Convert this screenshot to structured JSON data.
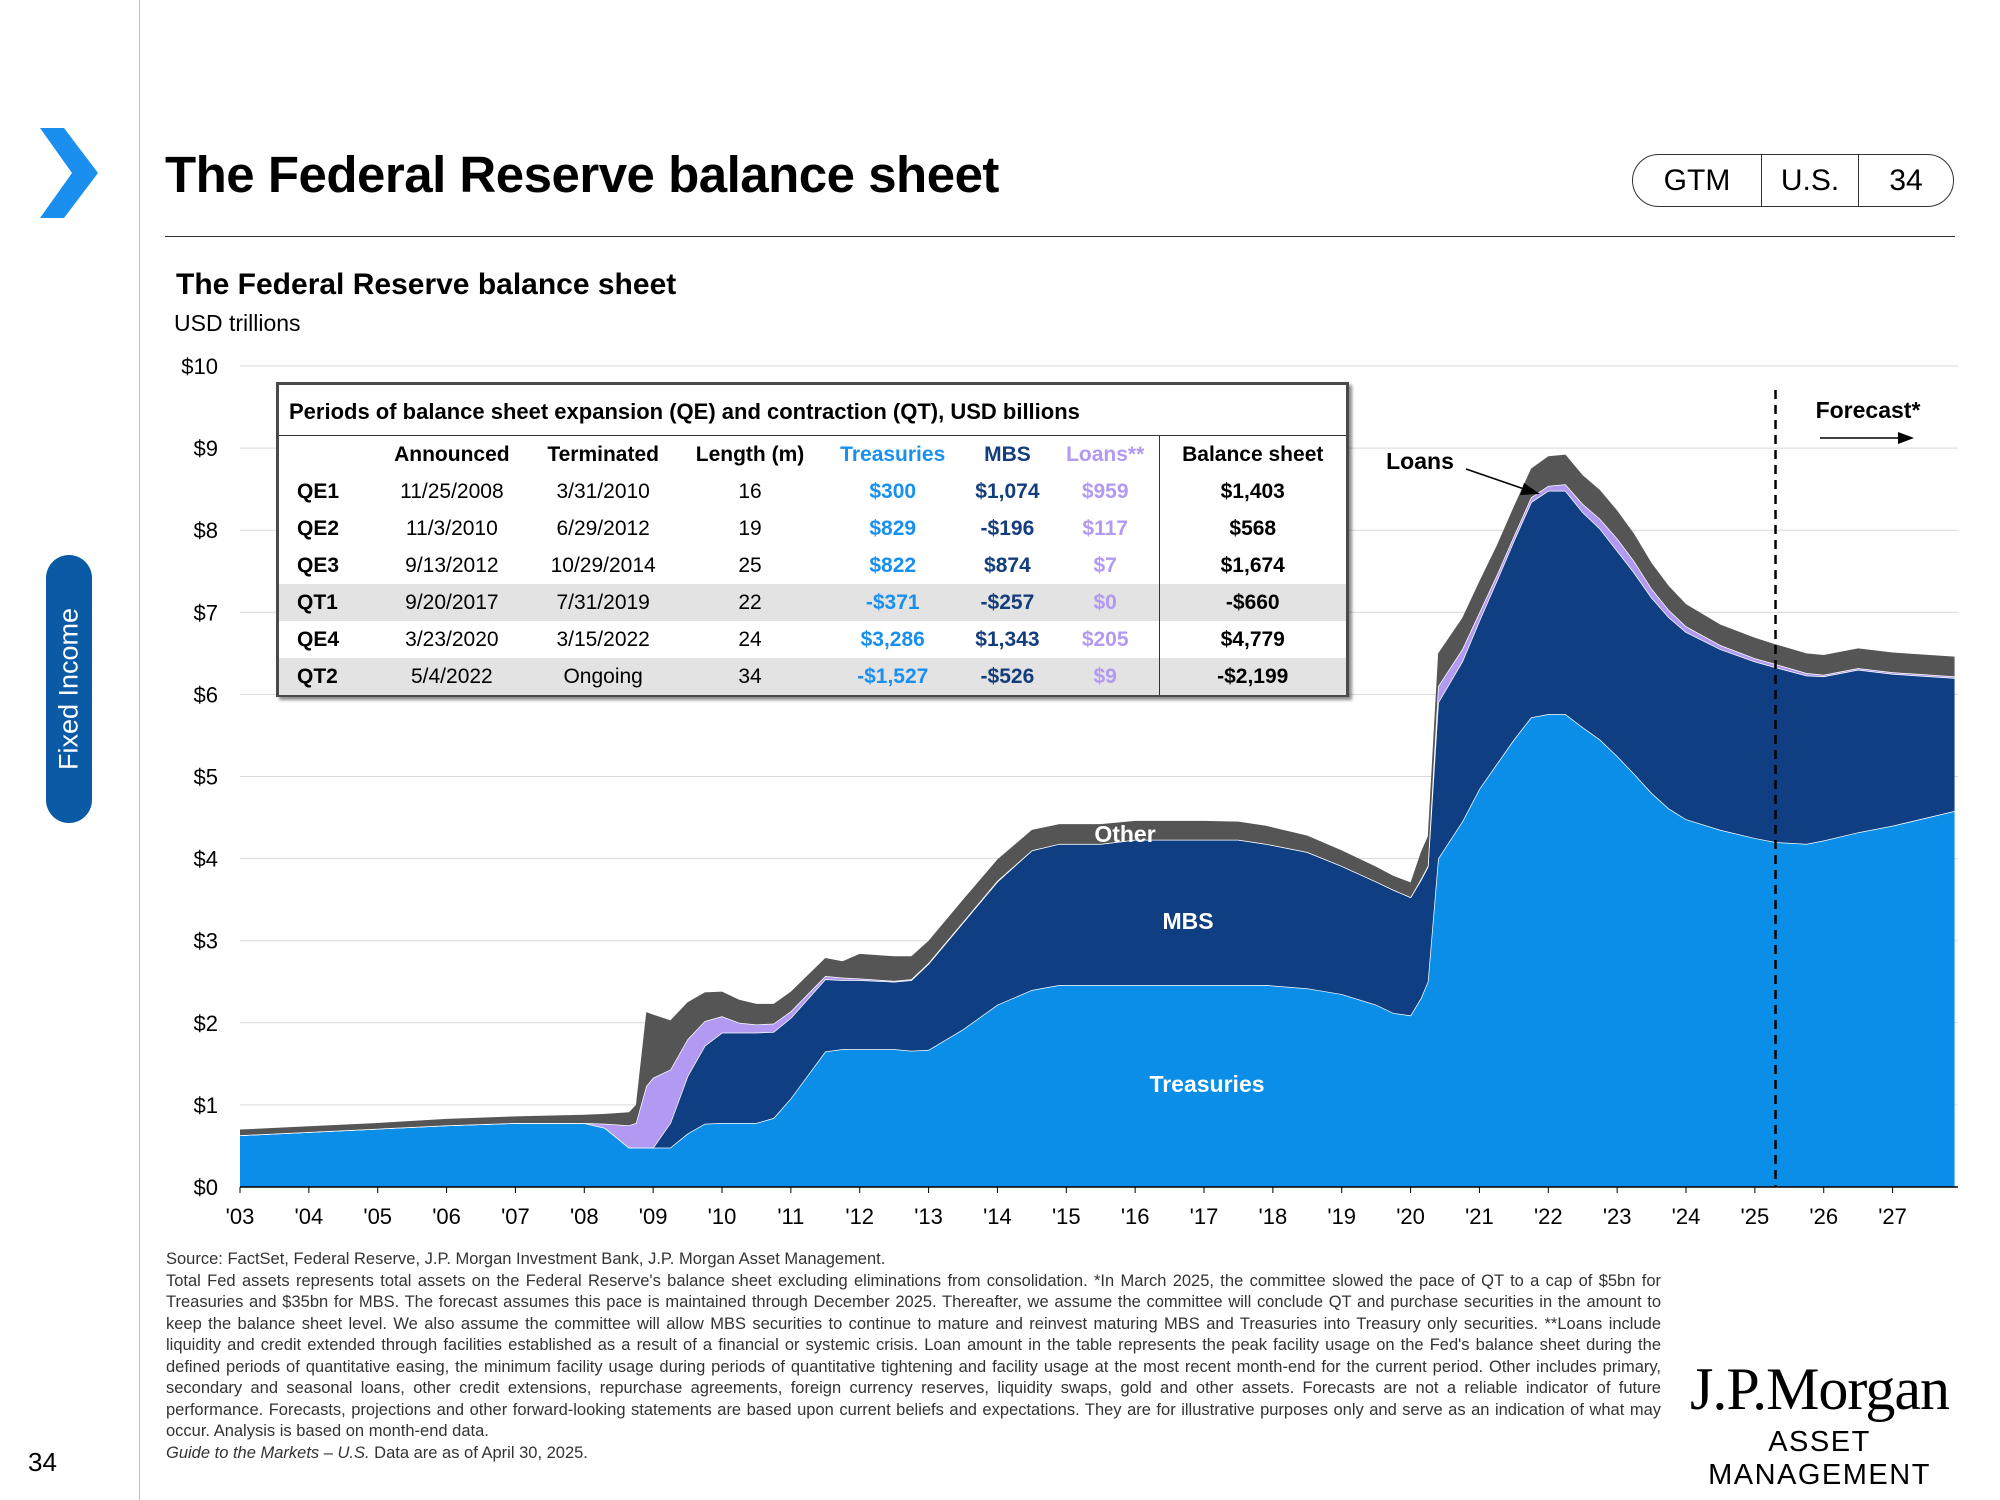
{
  "header": {
    "title": "The Federal Reserve balance sheet",
    "pill": [
      "GTM",
      "U.S.",
      "34"
    ]
  },
  "section_tab": "Fixed Income",
  "chart_data": {
    "type": "area",
    "title": "The Federal Reserve balance sheet",
    "subtitle": "USD trillions",
    "ylim": [
      0,
      10
    ],
    "y_ticks": [
      "$0",
      "$1",
      "$2",
      "$3",
      "$4",
      "$5",
      "$6",
      "$7",
      "$8",
      "$9",
      "$10"
    ],
    "x_ticks": [
      "'03",
      "'04",
      "'05",
      "'06",
      "'07",
      "'08",
      "'09",
      "'10",
      "'11",
      "'12",
      "'13",
      "'14",
      "'15",
      "'16",
      "'17",
      "'18",
      "'19",
      "'20",
      "'21",
      "'22",
      "'23",
      "'24",
      "'25",
      "'26",
      "'27"
    ],
    "x": [
      2003.0,
      2004.0,
      2005.0,
      2006.0,
      2007.0,
      2008.0,
      2008.3,
      2008.65,
      2008.75,
      2008.9,
      2009.0,
      2009.25,
      2009.5,
      2009.75,
      2010.0,
      2010.25,
      2010.5,
      2010.75,
      2011.0,
      2011.5,
      2011.75,
      2012.0,
      2012.5,
      2012.75,
      2013.0,
      2013.5,
      2014.0,
      2014.5,
      2014.9,
      2015.5,
      2016.0,
      2016.5,
      2017.0,
      2017.5,
      2017.9,
      2018.5,
      2019.0,
      2019.5,
      2019.75,
      2020.0,
      2020.15,
      2020.25,
      2020.4,
      2020.75,
      2021.0,
      2021.25,
      2021.5,
      2021.75,
      2022.0,
      2022.25,
      2022.5,
      2022.75,
      2023.0,
      2023.25,
      2023.5,
      2023.75,
      2024.0,
      2024.5,
      2025.0,
      2025.3,
      2025.75,
      2026.0,
      2026.5,
      2027.0,
      2027.9
    ],
    "series": [
      {
        "name": "Treasuries",
        "color": "#0a8ee8",
        "values": [
          0.63,
          0.67,
          0.71,
          0.75,
          0.78,
          0.78,
          0.72,
          0.48,
          0.48,
          0.48,
          0.48,
          0.48,
          0.65,
          0.77,
          0.78,
          0.78,
          0.78,
          0.84,
          1.08,
          1.65,
          1.68,
          1.68,
          1.68,
          1.66,
          1.67,
          1.92,
          2.22,
          2.4,
          2.46,
          2.46,
          2.46,
          2.46,
          2.46,
          2.46,
          2.46,
          2.42,
          2.35,
          2.22,
          2.12,
          2.09,
          2.3,
          2.5,
          4.0,
          4.45,
          4.85,
          5.15,
          5.45,
          5.72,
          5.76,
          5.76,
          5.6,
          5.45,
          5.25,
          5.03,
          4.8,
          4.61,
          4.48,
          4.35,
          4.25,
          4.2,
          4.18,
          4.22,
          4.32,
          4.4,
          4.58
        ]
      },
      {
        "name": "MBS",
        "color": "#0f3e83",
        "values": [
          0,
          0,
          0,
          0,
          0,
          0,
          0,
          0,
          0,
          0,
          0,
          0.3,
          0.7,
          0.95,
          1.1,
          1.1,
          1.1,
          1.05,
          0.98,
          0.88,
          0.84,
          0.84,
          0.82,
          0.86,
          1.05,
          1.3,
          1.5,
          1.7,
          1.72,
          1.72,
          1.77,
          1.77,
          1.77,
          1.77,
          1.72,
          1.66,
          1.56,
          1.5,
          1.5,
          1.44,
          1.44,
          1.4,
          1.9,
          1.95,
          2.05,
          2.23,
          2.42,
          2.62,
          2.72,
          2.72,
          2.62,
          2.57,
          2.5,
          2.45,
          2.38,
          2.33,
          2.28,
          2.2,
          2.15,
          2.13,
          2.05,
          2.0,
          1.98,
          1.85,
          1.62
        ]
      },
      {
        "name": "Loans",
        "color": "#b299f2",
        "values": [
          0,
          0,
          0,
          0,
          0,
          0,
          0.05,
          0.27,
          0.3,
          0.75,
          0.85,
          0.65,
          0.45,
          0.3,
          0.2,
          0.12,
          0.1,
          0.1,
          0.08,
          0.04,
          0.03,
          0.02,
          0.01,
          0.01,
          0.01,
          0.01,
          0.01,
          0,
          0,
          0,
          0,
          0,
          0,
          0,
          0,
          0,
          0,
          0,
          0,
          0,
          0.01,
          0.01,
          0.2,
          0.15,
          0.1,
          0.07,
          0.06,
          0.06,
          0.06,
          0.08,
          0.1,
          0.12,
          0.15,
          0.14,
          0.11,
          0.09,
          0.07,
          0.05,
          0.04,
          0.04,
          0.03,
          0.02,
          0.02,
          0.02,
          0.02
        ]
      },
      {
        "name": "Other",
        "color": "#555555",
        "values": [
          0.07,
          0.07,
          0.07,
          0.08,
          0.08,
          0.1,
          0.12,
          0.16,
          0.22,
          0.9,
          0.77,
          0.6,
          0.45,
          0.35,
          0.3,
          0.28,
          0.25,
          0.24,
          0.24,
          0.22,
          0.2,
          0.3,
          0.3,
          0.28,
          0.27,
          0.27,
          0.26,
          0.25,
          0.24,
          0.24,
          0.23,
          0.23,
          0.23,
          0.22,
          0.22,
          0.2,
          0.19,
          0.18,
          0.17,
          0.18,
          0.33,
          0.36,
          0.4,
          0.38,
          0.38,
          0.36,
          0.36,
          0.35,
          0.36,
          0.36,
          0.35,
          0.35,
          0.34,
          0.33,
          0.31,
          0.29,
          0.27,
          0.25,
          0.25,
          0.24,
          0.24,
          0.24,
          0.24,
          0.24,
          0.24
        ]
      }
    ],
    "area_labels": {
      "other": "Other",
      "mbs": "MBS",
      "treasuries": "Treasuries",
      "loans": "Loans"
    },
    "forecast": {
      "label": "Forecast*",
      "start_x": 2025.3
    }
  },
  "table": {
    "caption": "Periods of balance sheet expansion (QE) and contraction (QT), USD billions",
    "columns": [
      "",
      "Announced",
      "Terminated",
      "Length (m)",
      "Treasuries",
      "MBS",
      "Loans**",
      "Balance sheet"
    ],
    "rows": [
      {
        "label": "QE1",
        "announced": "11/25/2008",
        "terminated": "3/31/2010",
        "length": "16",
        "treasuries": "$300",
        "mbs": "$1,074",
        "loans": "$959",
        "balance": "$1,403"
      },
      {
        "label": "QE2",
        "announced": "11/3/2010",
        "terminated": "6/29/2012",
        "length": "19",
        "treasuries": "$829",
        "mbs": "-$196",
        "loans": "$117",
        "balance": "$568"
      },
      {
        "label": "QE3",
        "announced": "9/13/2012",
        "terminated": "10/29/2014",
        "length": "25",
        "treasuries": "$822",
        "mbs": "$874",
        "loans": "$7",
        "balance": "$1,674"
      },
      {
        "label": "QT1",
        "announced": "9/20/2017",
        "terminated": "7/31/2019",
        "length": "22",
        "treasuries": "-$371",
        "mbs": "-$257",
        "loans": "$0",
        "balance": "-$660"
      },
      {
        "label": "QE4",
        "announced": "3/23/2020",
        "terminated": "3/15/2022",
        "length": "24",
        "treasuries": "$3,286",
        "mbs": "$1,343",
        "loans": "$205",
        "balance": "$4,779"
      },
      {
        "label": "QT2",
        "announced": "5/4/2022",
        "terminated": "Ongoing",
        "length": "34",
        "treasuries": "-$1,527",
        "mbs": "-$526",
        "loans": "$9",
        "balance": "-$2,199"
      }
    ]
  },
  "footnotes": {
    "source": "Source: FactSet, Federal Reserve, J.P. Morgan Investment Bank, J.P. Morgan Asset Management.",
    "body": "Total Fed assets represents total assets on the Federal Reserve's balance sheet excluding eliminations from consolidation. *In March 2025, the committee slowed the pace of QT to a cap of $5bn for Treasuries and $35bn for MBS. The forecast assumes this pace is maintained through December 2025. Thereafter, we assume the committee will conclude QT and purchase securities in the amount to keep the balance sheet level. We also assume the committee will allow MBS securities to continue to mature and reinvest maturing MBS and Treasuries into Treasury only securities. **Loans include liquidity and credit extended through facilities established as a result of a financial or systemic crisis. Loan amount in the table represents the peak facility usage on the Fed's balance sheet during the defined periods of quantitative easing, the minimum facility usage during periods of quantitative tightening and facility usage at the most recent month-end for the current period. Other includes primary, secondary and seasonal loans, other credit extensions, repurchase agreements, foreign currency reserves, liquidity swaps, gold and other assets. Forecasts are not a reliable indicator of future performance. Forecasts, projections and other forward-looking statements are based upon current beliefs and expectations. They are for illustrative purposes only and serve as an indication of what may occur. Analysis is based on month-end data.",
    "guide_italic": "Guide to the Markets – U.S.",
    "guide_rest": " Data are as of April 30, 2025."
  },
  "logo": {
    "line1": "J.P.Morgan",
    "line2": "ASSET MANAGEMENT"
  },
  "page_number": "34",
  "colors": {
    "accent": "#0a5aa6",
    "chevron": "#1a8ff0"
  }
}
